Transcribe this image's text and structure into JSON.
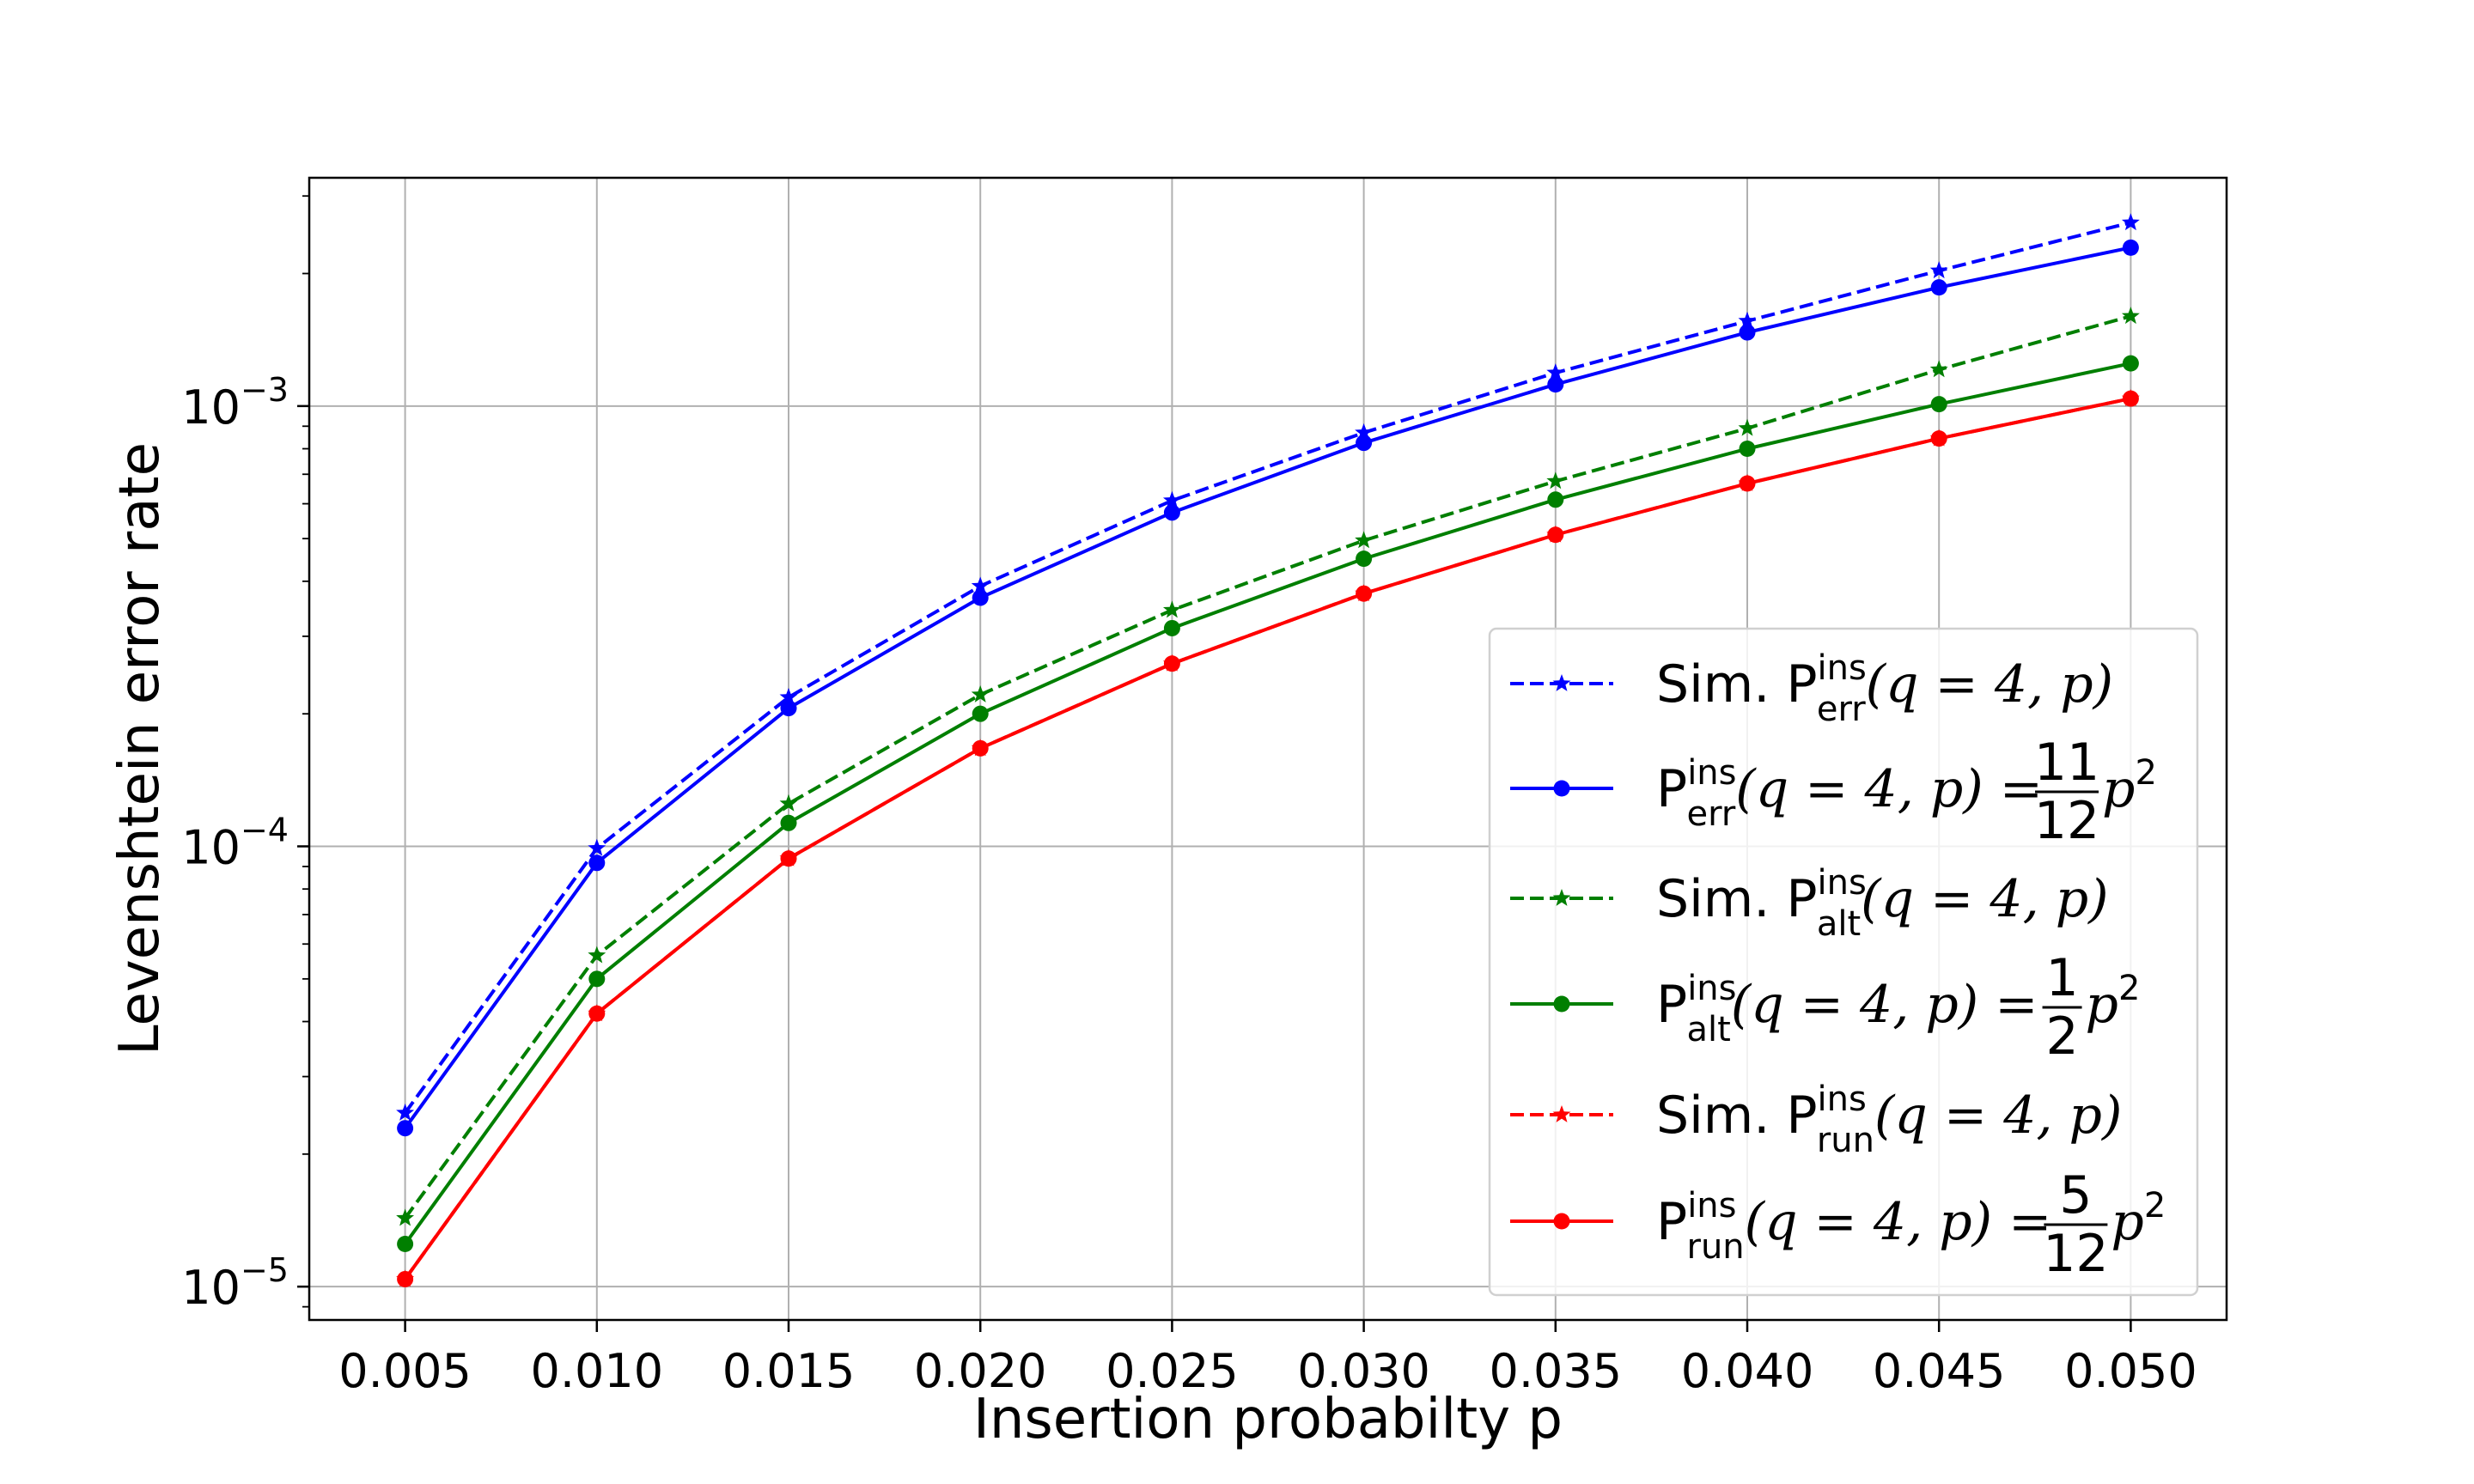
{
  "chart_data": {
    "type": "line",
    "title": "",
    "xlabel": "Insertion probabilty p",
    "ylabel": "Levenshtein error rate",
    "yscale": "log",
    "xlim": [
      0.0025,
      0.0525
    ],
    "ylim": [
      8.4e-06,
      0.0033
    ],
    "grid": true,
    "legend_position": "lower-right",
    "x": [
      0.005,
      0.01,
      0.015,
      0.02,
      0.025,
      0.03,
      0.035,
      0.04,
      0.045,
      0.05
    ],
    "x_ticks": [
      "0.005",
      "0.010",
      "0.015",
      "0.020",
      "0.025",
      "0.030",
      "0.035",
      "0.040",
      "0.045",
      "0.050"
    ],
    "y_ticks": [
      {
        "value": 1e-05,
        "mantissa": "10",
        "exp": "−5"
      },
      {
        "value": 0.0001,
        "mantissa": "10",
        "exp": "−4"
      },
      {
        "value": 0.001,
        "mantissa": "10",
        "exp": "−3"
      }
    ],
    "series": [
      {
        "key": "sim-err",
        "color": "#0000ff",
        "dashed": true,
        "marker": "star",
        "values": [
          2.48e-05,
          9.9e-05,
          0.000218,
          0.00039,
          0.00061,
          0.00087,
          0.00119,
          0.00156,
          0.00203,
          0.00261
        ],
        "legend": {
          "prefix": "Sim. P",
          "sup": "ins",
          "sub": "err",
          "args": "(q = 4, p)",
          "eq": "",
          "frac_num": "",
          "frac_den": "",
          "tail": ""
        }
      },
      {
        "key": "theory-err",
        "color": "#0000ff",
        "dashed": false,
        "marker": "circle",
        "values": [
          2.29e-05,
          9.17e-05,
          0.000206,
          0.000367,
          0.000573,
          0.000825,
          0.00112,
          0.00147,
          0.00186,
          0.00229
        ],
        "legend": {
          "prefix": "P",
          "sup": "ins",
          "sub": "err",
          "args": "(q = 4, p)",
          "eq": " = ",
          "frac_num": "11",
          "frac_den": "12",
          "tail": "p"
        }
      },
      {
        "key": "sim-alt",
        "color": "#007f00",
        "dashed": true,
        "marker": "star",
        "values": [
          1.43e-05,
          5.65e-05,
          0.000125,
          0.000221,
          0.000344,
          0.000495,
          0.000675,
          0.00089,
          0.00121,
          0.0016
        ],
        "legend": {
          "prefix": "Sim. P",
          "sup": "ins",
          "sub": "alt",
          "args": "(q = 4, p)",
          "eq": "",
          "frac_num": "",
          "frac_den": "",
          "tail": ""
        }
      },
      {
        "key": "theory-alt",
        "color": "#007f00",
        "dashed": false,
        "marker": "circle",
        "values": [
          1.25e-05,
          5e-05,
          0.000113,
          0.0002,
          0.000313,
          0.00045,
          0.000613,
          0.0008,
          0.00101,
          0.00125
        ],
        "legend": {
          "prefix": "P",
          "sup": "ins",
          "sub": "alt",
          "args": "(q = 4, p)",
          "eq": " = ",
          "frac_num": "1",
          "frac_den": "2",
          "tail": "p"
        }
      },
      {
        "key": "sim-run",
        "color": "#ff0000",
        "dashed": true,
        "marker": "star",
        "values": [
          1.04e-05,
          4.17e-05,
          9.38e-05,
          0.000167,
          0.00026,
          0.000375,
          0.00051,
          0.000667,
          0.000844,
          0.00104
        ],
        "legend": {
          "prefix": "Sim. P",
          "sup": "ins",
          "sub": "run",
          "args": "(q = 4, p)",
          "eq": "",
          "frac_num": "",
          "frac_den": "",
          "tail": ""
        }
      },
      {
        "key": "theory-run",
        "color": "#ff0000",
        "dashed": false,
        "marker": "circle",
        "values": [
          1.04e-05,
          4.17e-05,
          9.38e-05,
          0.000167,
          0.00026,
          0.000375,
          0.00051,
          0.000667,
          0.000844,
          0.00104
        ],
        "legend": {
          "prefix": "P",
          "sup": "ins",
          "sub": "run",
          "args": "(q = 4, p)",
          "eq": " = ",
          "frac_num": "5",
          "frac_den": "12",
          "tail": "p"
        }
      }
    ]
  }
}
